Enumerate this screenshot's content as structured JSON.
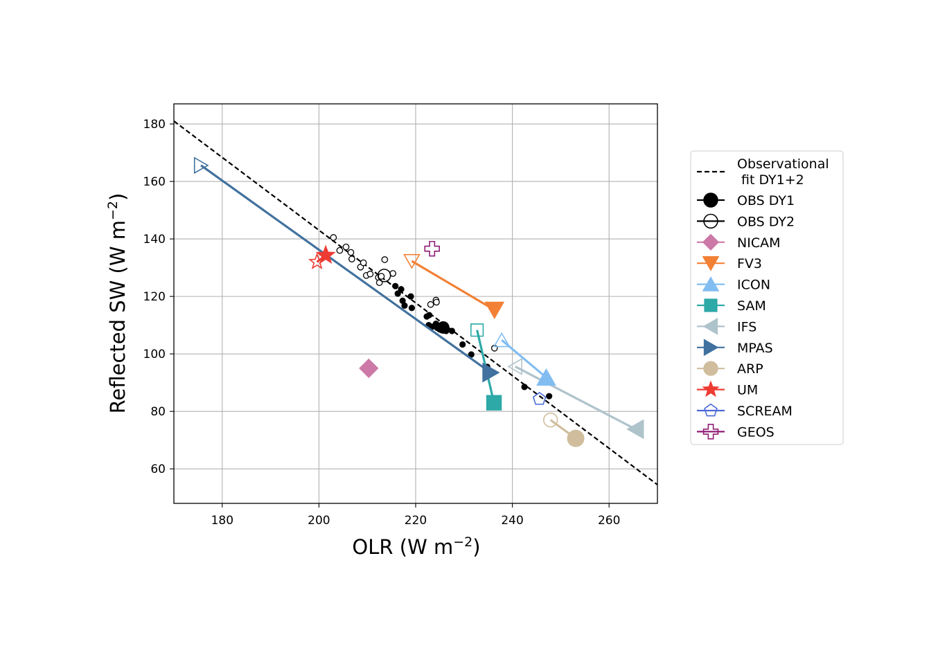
{
  "chart_data": {
    "type": "scatter",
    "xlabel": "OLR (W m",
    "ylabel": "Reflected SW (W m",
    "label_exponent": "−2",
    "label_close": ")",
    "xlim": [
      170,
      270
    ],
    "ylim": [
      48,
      187
    ],
    "xticks": [
      180,
      200,
      220,
      240,
      260
    ],
    "yticks": [
      60,
      80,
      100,
      120,
      140,
      160,
      180
    ],
    "grid": true,
    "legend_position": "outside-right",
    "fit_line": {
      "name": "Observational\nfit DY1+2",
      "color": "#000000",
      "x": [
        170,
        270
      ],
      "y": [
        181,
        54.5
      ]
    },
    "obs_dy1": {
      "name": "OBS DY1",
      "color": "#000000",
      "points": [
        [
          215.8,
          123.6
        ],
        [
          216.3,
          121
        ],
        [
          217,
          122.5
        ],
        [
          217.3,
          118.5
        ],
        [
          217.7,
          116.8
        ],
        [
          219,
          120
        ],
        [
          219.2,
          116
        ],
        [
          222.3,
          113
        ],
        [
          222.8,
          113.5
        ],
        [
          222.7,
          110
        ],
        [
          223.5,
          109.5
        ],
        [
          224.2,
          110.5
        ],
        [
          224.5,
          109
        ],
        [
          225,
          108.5
        ],
        [
          225.5,
          110
        ],
        [
          226.3,
          108
        ],
        [
          227.5,
          108
        ],
        [
          229.7,
          103.3
        ],
        [
          231.5,
          99.8
        ],
        [
          234.8,
          95.5
        ],
        [
          242.5,
          88.5
        ],
        [
          247.6,
          85.3
        ]
      ],
      "mean": [
        225.7,
        109.2
      ]
    },
    "obs_dy2": {
      "name": "OBS DY2",
      "color": "#000000",
      "points": [
        [
          203,
          140.5
        ],
        [
          204.3,
          136
        ],
        [
          205.6,
          137.2
        ],
        [
          206.6,
          135.3
        ],
        [
          206.8,
          133
        ],
        [
          208.6,
          130.2
        ],
        [
          209.2,
          131.7
        ],
        [
          209.8,
          127.3
        ],
        [
          210.6,
          127.8
        ],
        [
          212.3,
          126.6
        ],
        [
          212.5,
          124.8
        ],
        [
          212.9,
          127
        ],
        [
          213.6,
          132.8
        ],
        [
          215.3,
          128
        ],
        [
          223.1,
          117.2
        ],
        [
          224.2,
          118.7
        ],
        [
          224.3,
          118
        ],
        [
          236.3,
          102
        ]
      ],
      "mean": [
        213.5,
        127.3
      ]
    },
    "models": [
      {
        "name": "NICAM",
        "color": "#cc79a7",
        "marker": "diamond",
        "dy2": [
          210.3,
          95
        ],
        "dy1": [
          210.3,
          95
        ]
      },
      {
        "name": "FV3",
        "color": "#f28035",
        "marker": "triangle-down",
        "dy2": [
          219.2,
          132.3
        ],
        "dy1": [
          236.3,
          115.3
        ]
      },
      {
        "name": "ICON",
        "color": "#82bdf2",
        "marker": "triangle-up",
        "dy2": [
          237.8,
          104.8
        ],
        "dy1": [
          247,
          91.8
        ]
      },
      {
        "name": "SAM",
        "color": "#2da9a7",
        "marker": "square",
        "dy2": [
          232.7,
          108.3
        ],
        "dy1": [
          236.2,
          83
        ]
      },
      {
        "name": "IFS",
        "color": "#afc3cb",
        "marker": "triangle-left",
        "dy2": [
          240.6,
          95.6
        ],
        "dy1": [
          265.5,
          73.8
        ]
      },
      {
        "name": "MPAS",
        "color": "#41719e",
        "marker": "triangle-right",
        "dy2": [
          175.6,
          165.6
        ],
        "dy1": [
          235.5,
          93.5
        ]
      },
      {
        "name": "ARP",
        "color": "#d0bd9d",
        "marker": "circle",
        "dy2": [
          247.9,
          77
        ],
        "dy1": [
          253.1,
          70.6
        ]
      },
      {
        "name": "UM",
        "color": "#ee3c33",
        "marker": "star",
        "dy2": [
          199.6,
          132
        ],
        "dy1": [
          201.4,
          134.3
        ]
      },
      {
        "name": "SCREAM",
        "color": "#4a68d8",
        "marker": "pentagon",
        "dy2": [
          245.6,
          84.3
        ],
        "dy1": null
      },
      {
        "name": "GEOS",
        "color": "#8e1b74",
        "marker": "plus",
        "dy2": [
          223.4,
          136.6
        ],
        "dy1": null
      }
    ]
  }
}
